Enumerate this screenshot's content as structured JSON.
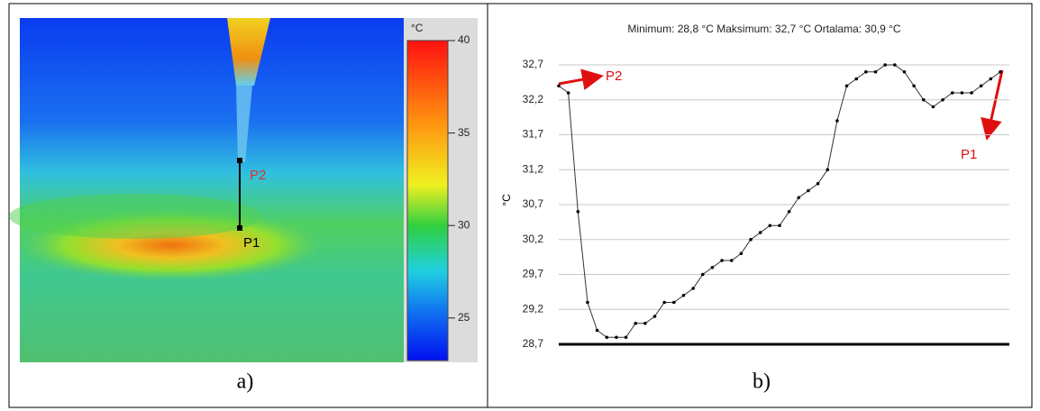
{
  "chart_data": [
    {
      "type": "thermal-image",
      "caption": "a)",
      "annotations": [
        "P2",
        "P1"
      ],
      "colorbar": {
        "unit": "°C",
        "lim": [
          22.7,
          40
        ],
        "ticks": [
          25,
          30,
          35,
          40
        ]
      }
    },
    {
      "type": "line",
      "title": "Minimum: 28,8 °C Maksimum: 32,7 °C Ortalama: 30,9 °C",
      "y_label": "°C",
      "caption": "b)",
      "annotations": [
        "P2",
        "P1"
      ],
      "color": "#333333",
      "grid": true,
      "values": [
        32.4,
        32.3,
        30.6,
        29.3,
        28.9,
        28.8,
        28.8,
        28.8,
        29.0,
        29.0,
        29.1,
        29.3,
        29.3,
        29.4,
        29.5,
        29.7,
        29.8,
        29.9,
        29.9,
        30.0,
        30.2,
        30.3,
        30.4,
        30.4,
        30.6,
        30.8,
        30.9,
        31.0,
        31.2,
        31.9,
        32.4,
        32.5,
        32.6,
        32.6,
        32.7,
        32.7,
        32.6,
        32.4,
        32.2,
        32.1,
        32.2,
        32.3,
        32.3,
        32.3,
        32.4,
        32.5,
        32.6
      ],
      "ylim": [
        28.7,
        32.7
      ],
      "yticks": [
        {
          "value": 28.7,
          "label": "28,7"
        },
        {
          "value": 29.2,
          "label": "29,2"
        },
        {
          "value": 29.7,
          "label": "29,7"
        },
        {
          "value": 30.2,
          "label": "30,2"
        },
        {
          "value": 30.7,
          "label": "30,7"
        },
        {
          "value": 31.2,
          "label": "31,2"
        },
        {
          "value": 31.7,
          "label": "31,7"
        },
        {
          "value": 32.2,
          "label": "32,2"
        },
        {
          "value": 32.7,
          "label": "32,7"
        }
      ]
    }
  ]
}
